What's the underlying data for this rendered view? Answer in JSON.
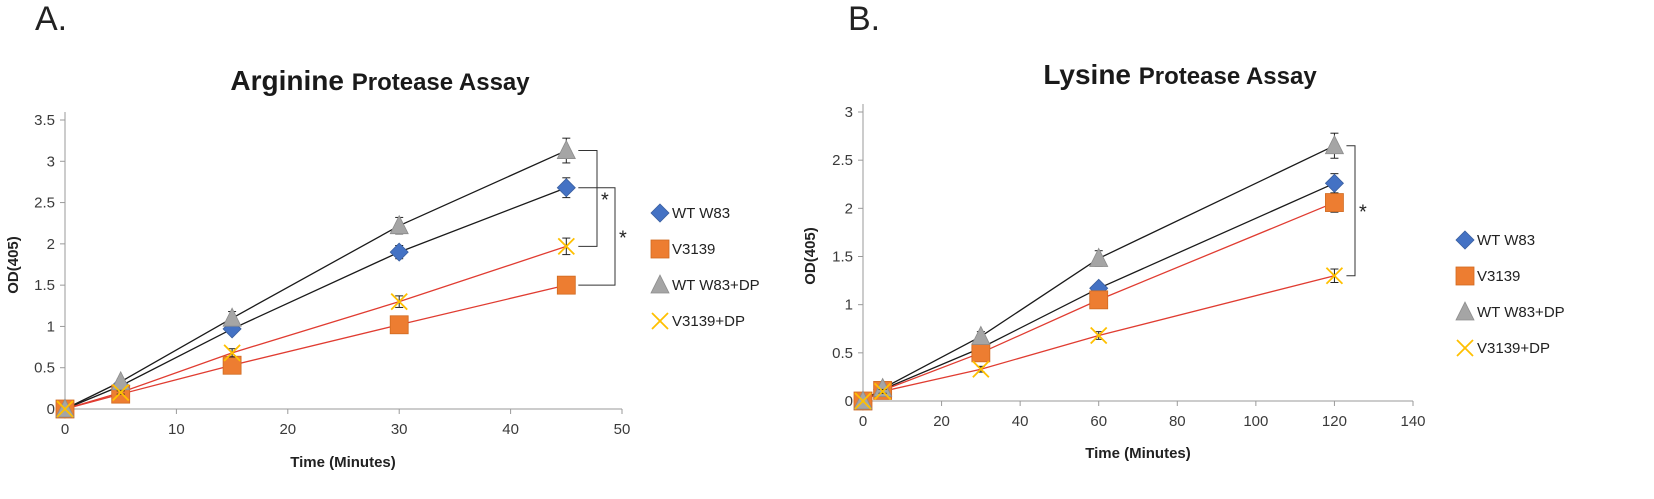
{
  "chart_data": [
    {
      "panel": "A.",
      "type": "scatter",
      "title_bold": "Arginine",
      "title_rest": "Protease Assay",
      "xlabel": "Time (Minutes)",
      "ylabel": "OD(405)",
      "xlim": [
        0,
        50
      ],
      "ylim": [
        0,
        3.5
      ],
      "xticks": [
        0,
        10,
        20,
        30,
        40,
        50
      ],
      "yticks": [
        0,
        0.5,
        1,
        1.5,
        2,
        2.5,
        3,
        3.5
      ],
      "x": [
        0,
        5,
        15,
        30,
        45
      ],
      "series": [
        {
          "name": "WT W83",
          "marker": "diamond",
          "color": "#4472C4",
          "line_color": "#1a1a1a",
          "values": [
            0,
            0.28,
            0.97,
            1.9,
            2.68
          ],
          "errors": [
            0,
            0.03,
            0.05,
            0.08,
            0.12
          ]
        },
        {
          "name": "V3139",
          "marker": "square",
          "color": "#ED7D31",
          "line_color": "#E03C31",
          "values": [
            0,
            0.18,
            0.53,
            1.02,
            1.5
          ],
          "errors": [
            0,
            0.02,
            0.04,
            0.05,
            0.05
          ]
        },
        {
          "name": "WT W83+DP",
          "marker": "triangle",
          "color": "#A5A5A5",
          "line_color": "#1a1a1a",
          "values": [
            0,
            0.33,
            1.1,
            2.22,
            3.13
          ],
          "errors": [
            0,
            0.03,
            0.08,
            0.1,
            0.15
          ]
        },
        {
          "name": "V3139+DP",
          "marker": "x",
          "color": "#FFC000",
          "line_color": "#E03C31",
          "values": [
            0,
            0.2,
            0.68,
            1.3,
            1.97
          ],
          "errors": [
            0,
            0.02,
            0.05,
            0.07,
            0.1
          ]
        }
      ],
      "significance": [
        {
          "label": "*",
          "from": 3.13,
          "to": 1.97
        },
        {
          "label": "*",
          "from": 2.68,
          "to": 1.5
        }
      ]
    },
    {
      "panel": "B.",
      "type": "scatter",
      "title_bold": "Lysine",
      "title_rest": "Protease Assay",
      "xlabel": "Time (Minutes)",
      "ylabel": "OD(405)",
      "xlim": [
        0,
        140
      ],
      "ylim": [
        0,
        3
      ],
      "xticks": [
        0,
        20,
        40,
        60,
        80,
        100,
        120,
        140
      ],
      "yticks": [
        0,
        0.5,
        1,
        1.5,
        2,
        2.5,
        3
      ],
      "x": [
        0,
        5,
        30,
        60,
        120
      ],
      "series": [
        {
          "name": "WT W83",
          "marker": "diamond",
          "color": "#4472C4",
          "line_color": "#1a1a1a",
          "values": [
            0,
            0.12,
            0.55,
            1.17,
            2.26
          ],
          "errors": [
            0,
            0.02,
            0.04,
            0.05,
            0.1
          ]
        },
        {
          "name": "V3139",
          "marker": "square",
          "color": "#ED7D31",
          "line_color": "#E03C31",
          "values": [
            0,
            0.11,
            0.5,
            1.05,
            2.06
          ],
          "errors": [
            0,
            0.02,
            0.04,
            0.05,
            0.1
          ]
        },
        {
          "name": "WT W83+DP",
          "marker": "triangle",
          "color": "#A5A5A5",
          "line_color": "#1a1a1a",
          "values": [
            0,
            0.13,
            0.67,
            1.48,
            2.65
          ],
          "errors": [
            0,
            0.02,
            0.05,
            0.08,
            0.13
          ]
        },
        {
          "name": "V3139+DP",
          "marker": "x",
          "color": "#FFC000",
          "line_color": "#E03C31",
          "values": [
            0,
            0.1,
            0.33,
            0.68,
            1.3
          ],
          "errors": [
            0,
            0.02,
            0.03,
            0.04,
            0.07
          ]
        }
      ],
      "significance": [
        {
          "label": "*",
          "from": 2.65,
          "to": 1.3
        }
      ]
    }
  ]
}
